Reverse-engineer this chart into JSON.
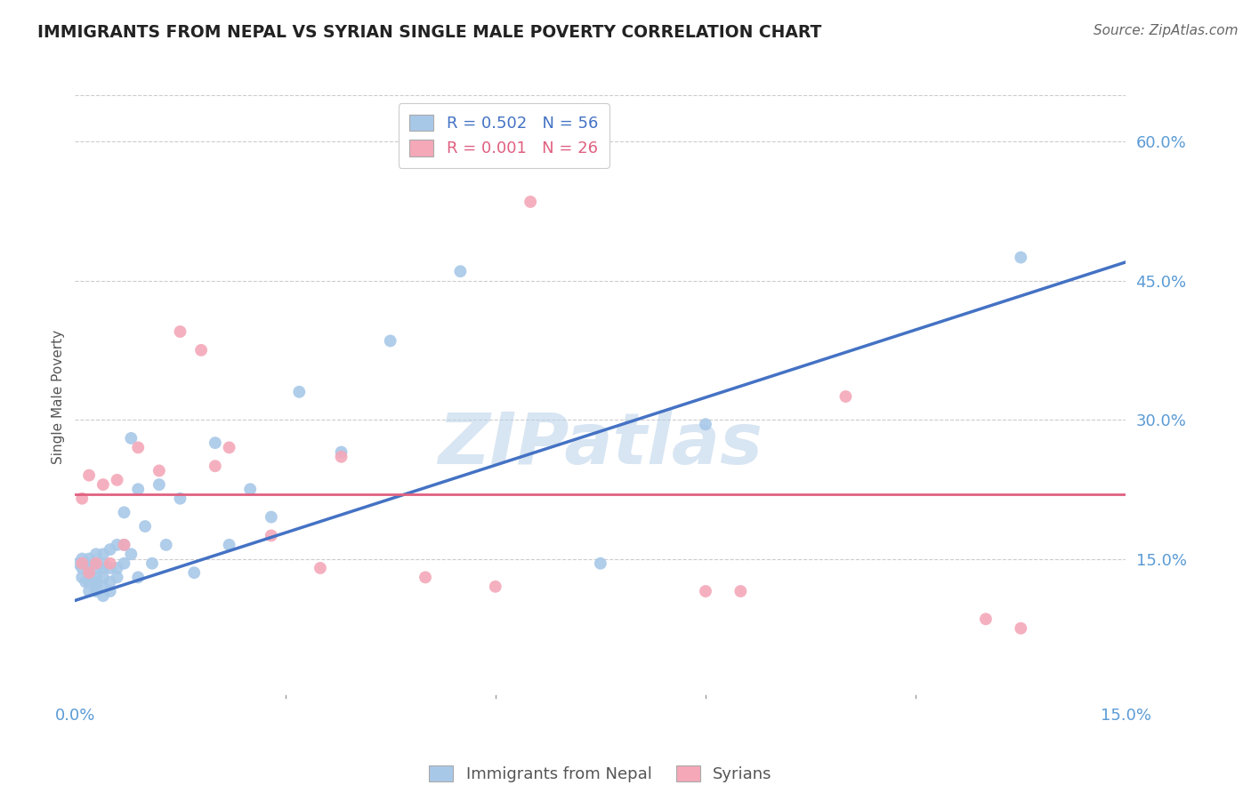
{
  "title": "IMMIGRANTS FROM NEPAL VS SYRIAN SINGLE MALE POVERTY CORRELATION CHART",
  "source": "Source: ZipAtlas.com",
  "ylabel": "Single Male Poverty",
  "watermark": "ZIPatlas",
  "xlim": [
    0.0,
    0.15
  ],
  "ylim": [
    0.0,
    0.65
  ],
  "xtick_labels": [
    "0.0%",
    "15.0%"
  ],
  "ytick_labels": [
    "15.0%",
    "30.0%",
    "45.0%",
    "60.0%"
  ],
  "ytick_vals": [
    0.15,
    0.3,
    0.45,
    0.6
  ],
  "nepal_R": 0.502,
  "nepal_N": 56,
  "syrian_R": 0.001,
  "syrian_N": 26,
  "nepal_color": "#a8c8e8",
  "syrian_color": "#f4a8b8",
  "nepal_line_color": "#4472c4",
  "syrian_line_color": "#e06080",
  "title_color": "#222222",
  "tick_label_color": "#5b9bd5",
  "background_color": "#ffffff",
  "nepal_x": [
    0.0005,
    0.001,
    0.001,
    0.001,
    0.0015,
    0.0015,
    0.002,
    0.002,
    0.002,
    0.002,
    0.002,
    0.002,
    0.003,
    0.003,
    0.003,
    0.003,
    0.003,
    0.003,
    0.003,
    0.004,
    0.004,
    0.004,
    0.004,
    0.004,
    0.004,
    0.005,
    0.005,
    0.005,
    0.005,
    0.006,
    0.006,
    0.006,
    0.007,
    0.007,
    0.007,
    0.008,
    0.008,
    0.009,
    0.009,
    0.01,
    0.011,
    0.012,
    0.013,
    0.015,
    0.017,
    0.02,
    0.022,
    0.025,
    0.028,
    0.032,
    0.038,
    0.045,
    0.055,
    0.075,
    0.09,
    0.135
  ],
  "nepal_y": [
    0.145,
    0.13,
    0.14,
    0.15,
    0.125,
    0.145,
    0.115,
    0.125,
    0.13,
    0.135,
    0.14,
    0.15,
    0.115,
    0.12,
    0.125,
    0.13,
    0.14,
    0.145,
    0.155,
    0.11,
    0.12,
    0.13,
    0.14,
    0.145,
    0.155,
    0.115,
    0.125,
    0.14,
    0.16,
    0.13,
    0.14,
    0.165,
    0.145,
    0.165,
    0.2,
    0.155,
    0.28,
    0.13,
    0.225,
    0.185,
    0.145,
    0.23,
    0.165,
    0.215,
    0.135,
    0.275,
    0.165,
    0.225,
    0.195,
    0.33,
    0.265,
    0.385,
    0.46,
    0.145,
    0.295,
    0.475
  ],
  "syrian_x": [
    0.001,
    0.001,
    0.002,
    0.002,
    0.003,
    0.004,
    0.005,
    0.006,
    0.007,
    0.009,
    0.012,
    0.015,
    0.018,
    0.02,
    0.022,
    0.028,
    0.035,
    0.038,
    0.05,
    0.06,
    0.065,
    0.09,
    0.095,
    0.11,
    0.13,
    0.135
  ],
  "syrian_y": [
    0.145,
    0.215,
    0.135,
    0.24,
    0.145,
    0.23,
    0.145,
    0.235,
    0.165,
    0.27,
    0.245,
    0.395,
    0.375,
    0.25,
    0.27,
    0.175,
    0.14,
    0.26,
    0.13,
    0.12,
    0.535,
    0.115,
    0.115,
    0.325,
    0.085,
    0.075
  ],
  "nepal_trend_x": [
    0.0,
    0.15
  ],
  "nepal_trend_y": [
    0.105,
    0.47
  ],
  "syrian_trend_y": 0.22,
  "legend_nepal_label": "Immigrants from Nepal",
  "legend_syrian_label": "Syrians"
}
